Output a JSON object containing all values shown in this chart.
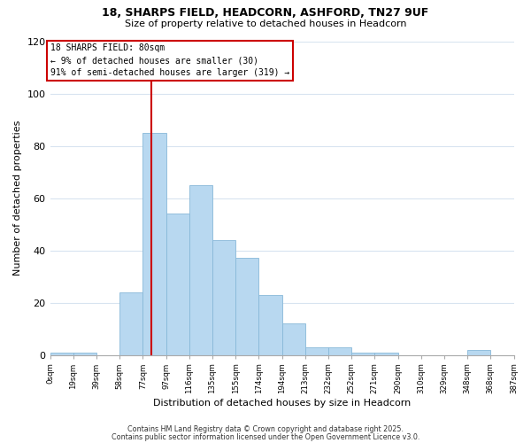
{
  "title1": "18, SHARPS FIELD, HEADCORN, ASHFORD, TN27 9UF",
  "title2": "Size of property relative to detached houses in Headcorn",
  "xlabel": "Distribution of detached houses by size in Headcorn",
  "ylabel": "Number of detached properties",
  "bar_heights": [
    1,
    1,
    0,
    24,
    85,
    54,
    65,
    44,
    37,
    23,
    12,
    3,
    3,
    1,
    1,
    0,
    0,
    0,
    2,
    0
  ],
  "tick_labels": [
    "0sqm",
    "19sqm",
    "39sqm",
    "58sqm",
    "77sqm",
    "97sqm",
    "116sqm",
    "135sqm",
    "155sqm",
    "174sqm",
    "194sqm",
    "213sqm",
    "232sqm",
    "252sqm",
    "271sqm",
    "290sqm",
    "310sqm",
    "329sqm",
    "348sqm",
    "368sqm",
    "387sqm"
  ],
  "n_bins": 20,
  "bar_color": "#b8d8f0",
  "bar_edge_color": "#88b8d8",
  "vline_bin": 4,
  "vline_color": "#cc0000",
  "annotation_text_line1": "18 SHARPS FIELD: 80sqm",
  "annotation_text_line2": "← 9% of detached houses are smaller (30)",
  "annotation_text_line3": "91% of semi-detached houses are larger (319) →",
  "ylim": [
    0,
    120
  ],
  "yticks": [
    0,
    20,
    40,
    60,
    80,
    100,
    120
  ],
  "footer1": "Contains HM Land Registry data © Crown copyright and database right 2025.",
  "footer2": "Contains public sector information licensed under the Open Government Licence v3.0.",
  "background_color": "#ffffff",
  "grid_color": "#d8e4f0"
}
